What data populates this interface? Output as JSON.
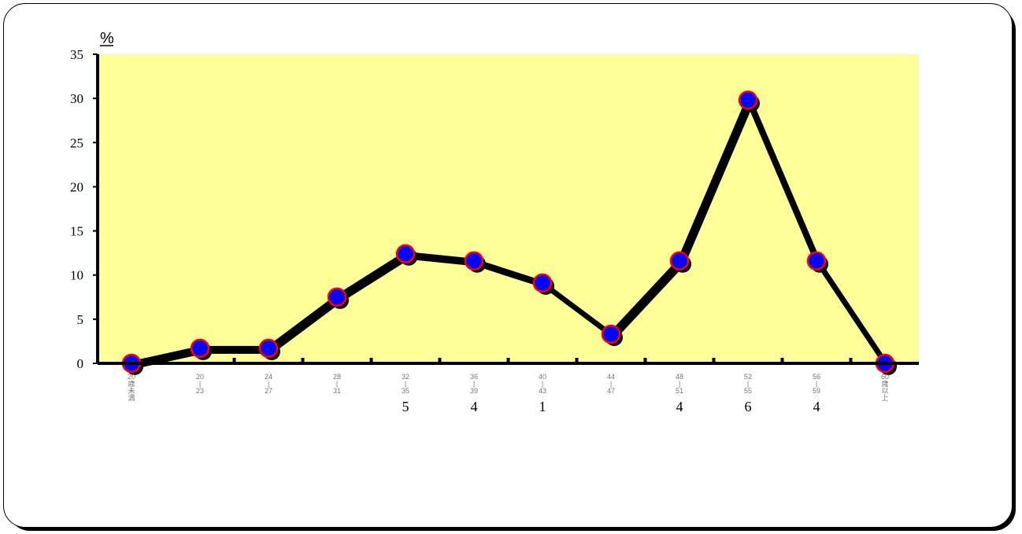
{
  "chart_data": {
    "type": "line",
    "y_unit": "%",
    "ylim": [
      0,
      35
    ],
    "y_ticks": [
      "0",
      "5",
      "10",
      "15",
      "20",
      "25",
      "30",
      "35"
    ],
    "categories": [
      [
        "20",
        "歳",
        "未",
        "満"
      ],
      [
        "20",
        "|",
        "23"
      ],
      [
        "24",
        "|",
        "27"
      ],
      [
        "28",
        "|",
        "31"
      ],
      [
        "32",
        "|",
        "35"
      ],
      [
        "36",
        "|",
        "39"
      ],
      [
        "40",
        "|",
        "43"
      ],
      [
        "44",
        "|",
        "47"
      ],
      [
        "48",
        "|",
        "51"
      ],
      [
        "52",
        "|",
        "55"
      ],
      [
        "56",
        "|",
        "59"
      ],
      [
        "60",
        "歳",
        "以",
        "上"
      ]
    ],
    "values": [
      0,
      1.7,
      1.7,
      7.5,
      12.4,
      11.6,
      9.1,
      3.3,
      11.6,
      29.8,
      11.6,
      0
    ],
    "data_labels": [
      "",
      "",
      "",
      "",
      "5",
      "4",
      "1",
      "",
      "4",
      "6",
      "4",
      ""
    ],
    "grid": false,
    "legend": "none",
    "colors": {
      "plot_background": "#ffff99",
      "line": "#000000",
      "marker_fill": "#0000ff",
      "marker_edge": "#ff0000"
    }
  }
}
